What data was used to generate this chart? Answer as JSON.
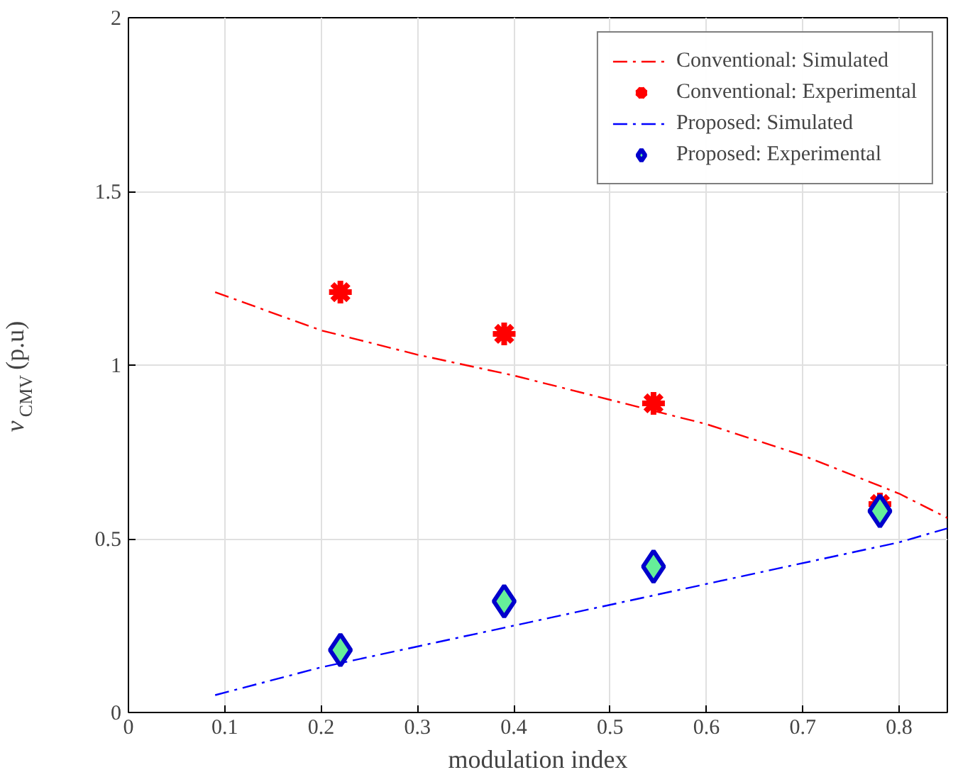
{
  "chart_data": {
    "type": "line",
    "xlabel": "modulation index",
    "ylabel": "v$_{CMV}$ (p.u)",
    "xlim": [
      0,
      0.85
    ],
    "ylim": [
      0,
      2
    ],
    "xticks": [
      0,
      0.1,
      0.2,
      0.3,
      0.4,
      0.5,
      0.6,
      0.7,
      0.8
    ],
    "yticks": [
      0,
      0.5,
      1,
      1.5,
      2
    ],
    "grid": true,
    "legend": "top right",
    "series": [
      {
        "name": "Conventional: Simulated",
        "line_style": "dashed",
        "marker": "none",
        "color": "#ff0000",
        "x": [
          0.09,
          0.2,
          0.3,
          0.4,
          0.5,
          0.6,
          0.7,
          0.8,
          0.85
        ],
        "values": [
          1.21,
          1.1,
          1.03,
          0.97,
          0.9,
          0.83,
          0.74,
          0.63,
          0.56
        ]
      },
      {
        "name": "Conventional: Experimental",
        "type": "scatter",
        "marker": "cross",
        "color": "#ff0000",
        "x": [
          0.22,
          0.39,
          0.545,
          0.78
        ],
        "values": [
          1.21,
          1.09,
          0.89,
          0.6
        ]
      },
      {
        "name": "Proposed: Simulated",
        "line_style": "dashed",
        "marker": "none",
        "color": "#0000ff",
        "x": [
          0.09,
          0.2,
          0.4,
          0.6,
          0.8,
          0.85
        ],
        "values": [
          0.05,
          0.13,
          0.25,
          0.37,
          0.49,
          0.53
        ]
      },
      {
        "name": "Proposed: Experimental",
        "type": "scatter",
        "marker": "diamond",
        "color": "#0000cc",
        "x": [
          0.22,
          0.39,
          0.545,
          0.78
        ],
        "values": [
          0.18,
          0.32,
          0.42,
          0.58
        ]
      }
    ]
  }
}
